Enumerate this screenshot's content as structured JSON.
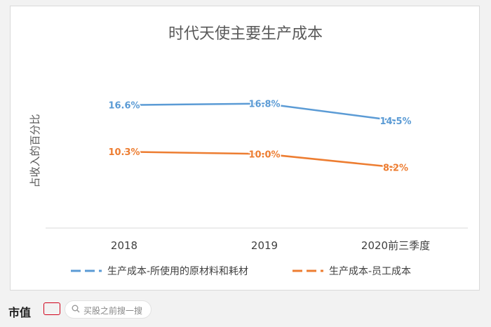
{
  "footer": {
    "brand": "市值",
    "search_placeholder": "买股之前搜一搜"
  },
  "chart_data": {
    "type": "line",
    "title": "时代天使主要生产成本",
    "ylabel": "占收入的百分比",
    "xlabel": "",
    "categories": [
      "2018",
      "2019",
      "2020前三季度"
    ],
    "value_suffix": "%",
    "ylim": [
      0,
      25
    ],
    "grid": false,
    "legend": "bottom",
    "series": [
      {
        "name": "生产成本-所使用的原材料和耗材",
        "values": [
          16.6,
          16.8,
          14.5
        ],
        "labels": [
          "16.6%",
          "16.8%",
          "14.5%"
        ],
        "color": "#5b9bd5"
      },
      {
        "name": "生产成本-员工成本",
        "values": [
          10.3,
          10.0,
          8.2
        ],
        "labels": [
          "10.3%",
          "10.0%",
          "8.2%"
        ],
        "color": "#ed7d31"
      }
    ]
  }
}
